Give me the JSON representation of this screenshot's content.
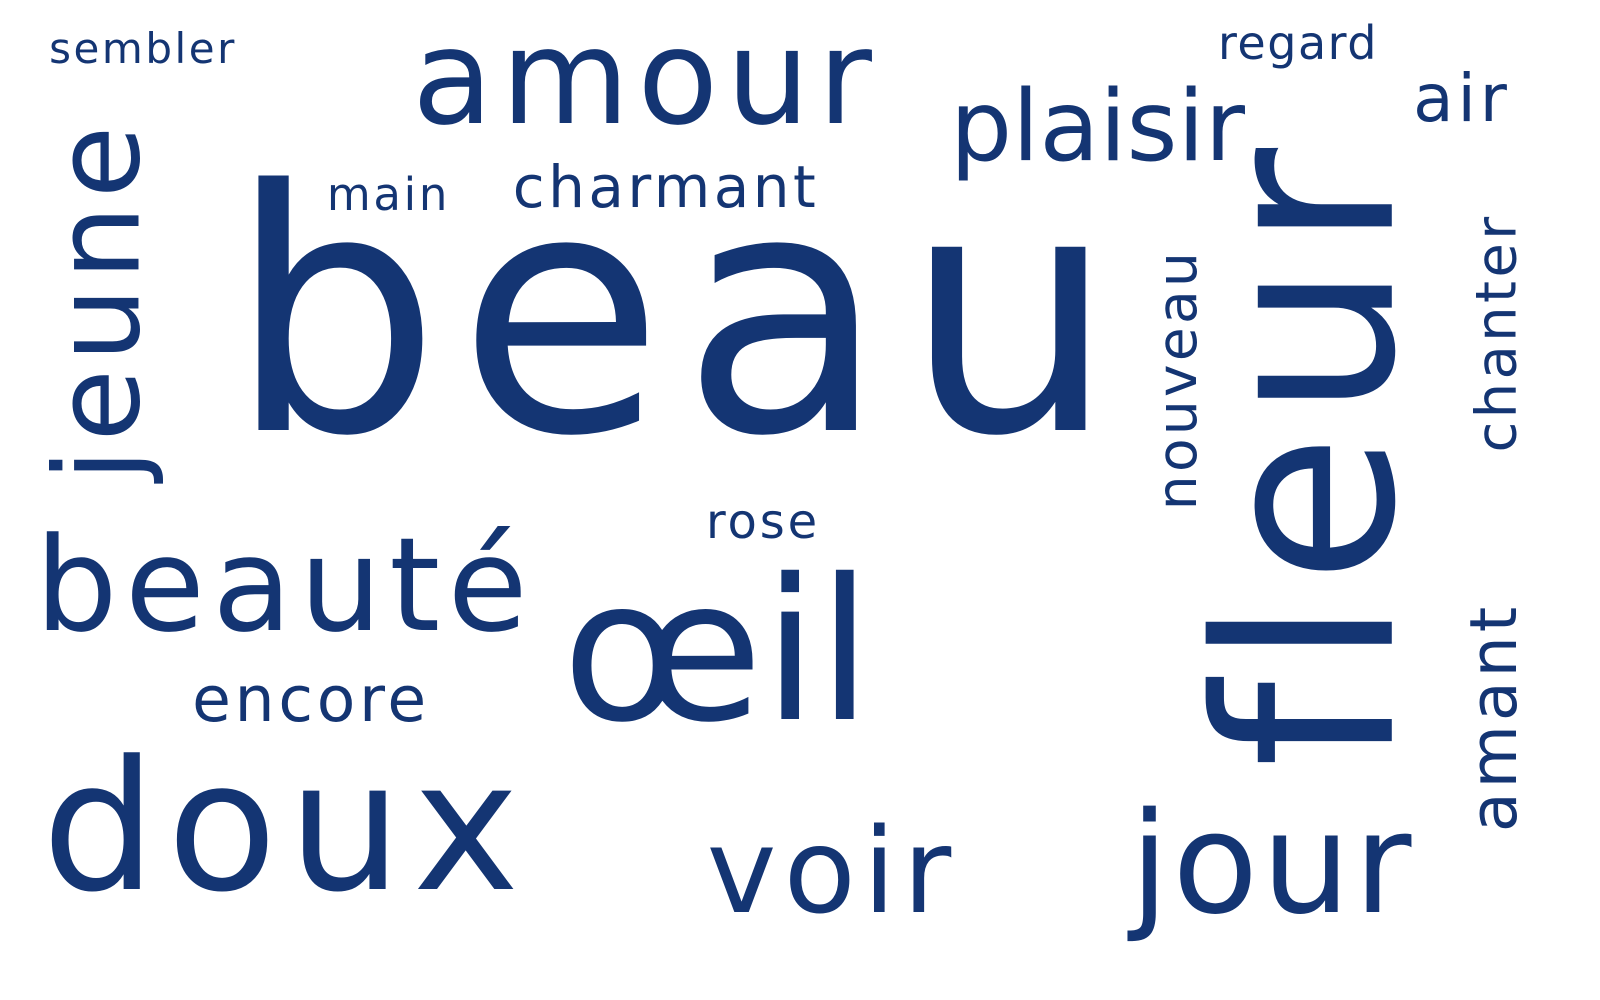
{
  "word_cloud": {
    "color": "#143573",
    "words": {
      "beau": "beau",
      "fleur": "fleur",
      "oeil": "œil",
      "amour": "amour",
      "doux": "doux",
      "jeune": "jeune",
      "beaute": "beauté",
      "voir": "voir",
      "jour": "jour",
      "plaisir": "plaisir",
      "nouveau": "nouveau",
      "chanter": "chanter",
      "amant": "amant",
      "encore": "encore",
      "charmant": "charmant",
      "main": "main",
      "rose": "rose",
      "air": "air",
      "sembler": "sembler",
      "regard": "regard"
    }
  }
}
